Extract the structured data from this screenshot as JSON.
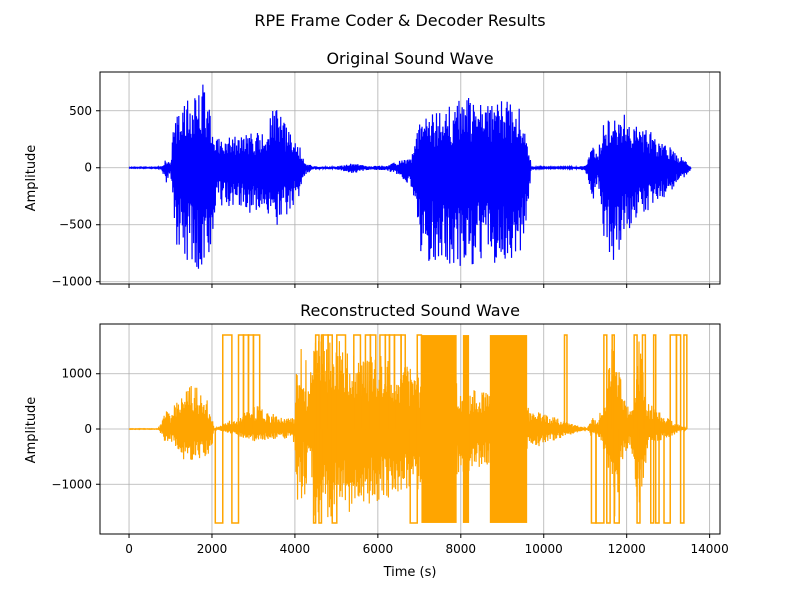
{
  "figure": {
    "suptitle": "RPE Frame Coder & Decoder Results"
  },
  "chart_data": [
    {
      "type": "line",
      "title": "Original Sound Wave",
      "xlabel": "",
      "ylabel": "Amplitude",
      "xlim": [
        -700,
        14250
      ],
      "ylim": [
        -1020,
        840
      ],
      "xticks": [
        0,
        2000,
        4000,
        6000,
        8000,
        10000,
        12000,
        14000
      ],
      "xtick_labels": [],
      "yticks": [
        -1000,
        -500,
        0,
        500
      ],
      "ytick_labels": [
        "−1000",
        "−500",
        "0",
        "500"
      ],
      "grid": true,
      "series": [
        {
          "color": "#0000ff",
          "envelope": {
            "x": [
              0,
              700,
              780,
              900,
              1000,
              1080,
              1150,
              1300,
              1500,
              1650,
              1750,
              1850,
              1950,
              2050,
              2150,
              2300,
              2600,
              3000,
              3300,
              3500,
              3900,
              4150,
              4250,
              4450,
              4600,
              4700,
              5000,
              5400,
              5800,
              6200,
              6500,
              6800,
              6900,
              7000,
              7200,
              7600,
              7900,
              8000,
              8100,
              8300,
              8600,
              8900,
              9200,
              9500,
              9600,
              9700,
              9800,
              10000,
              10500,
              10800,
              11000,
              11100,
              11200,
              11300,
              11450,
              11600,
              11700,
              11800,
              11900,
              12000,
              12300,
              12700,
              13000,
              13300,
              13500,
              13550
            ],
            "upper": [
              4,
              4,
              15,
              90,
              40,
              380,
              450,
              560,
              620,
              680,
              760,
              740,
              520,
              220,
              260,
              260,
              280,
              320,
              300,
              560,
              300,
              180,
              40,
              15,
              12,
              10,
              12,
              40,
              15,
              20,
              60,
              80,
              220,
              440,
              460,
              520,
              560,
              620,
              640,
              580,
              560,
              600,
              580,
              500,
              300,
              20,
              8,
              6,
              6,
              10,
              20,
              100,
              250,
              120,
              480,
              600,
              540,
              500,
              520,
              500,
              400,
              280,
              200,
              100,
              40,
              4
            ],
            "lower": [
              -4,
              -4,
              -20,
              -130,
              -60,
              -500,
              -700,
              -800,
              -850,
              -900,
              -940,
              -920,
              -860,
              -420,
              -330,
              -340,
              -380,
              -400,
              -400,
              -560,
              -380,
              -240,
              -60,
              -20,
              -15,
              -12,
              -15,
              -50,
              -20,
              -25,
              -60,
              -180,
              -300,
              -720,
              -820,
              -860,
              -940,
              -920,
              -900,
              -850,
              -820,
              -840,
              -800,
              -740,
              -380,
              -30,
              -10,
              -6,
              -6,
              -12,
              -30,
              -150,
              -320,
              -150,
              -600,
              -820,
              -880,
              -760,
              -600,
              -580,
              -440,
              -320,
              -240,
              -120,
              -50,
              -4
            ]
          }
        }
      ]
    },
    {
      "type": "line",
      "title": "Reconstructed Sound Wave",
      "xlabel": "Time (s)",
      "ylabel": "Amplitude",
      "xlim": [
        -700,
        14250
      ],
      "ylim": [
        -1900,
        1900
      ],
      "xticks": [
        0,
        2000,
        4000,
        6000,
        8000,
        10000,
        12000,
        14000
      ],
      "xtick_labels": [
        "0",
        "2000",
        "4000",
        "6000",
        "8000",
        "10000",
        "12000",
        "14000"
      ],
      "yticks": [
        -1000,
        0,
        1000
      ],
      "ytick_labels": [
        "−1000",
        "0",
        "1000"
      ],
      "grid": true,
      "series": [
        {
          "color": "#ffa500",
          "envelope": {
            "x": [
              0,
              700,
              800,
              900,
              1000,
              1100,
              1300,
              1500,
              1700,
              1800,
              1900,
              2000,
              2050,
              3150,
              3300,
              3600,
              3900,
              4000,
              4050,
              4100,
              4150,
              4200,
              4250,
              4300,
              4400,
              4500,
              4700,
              11050,
              11150,
              11300,
              11500,
              11700,
              11900,
              12100,
              12300,
              12500,
              12700,
              12900,
              13000,
              13450
            ],
            "upper": [
              5,
              5,
              150,
              380,
              250,
              500,
              680,
              900,
              750,
              620,
              500,
              300,
              0,
              450,
              300,
              260,
              200,
              300,
              1700,
              900,
              1700,
              700,
              1700,
              600,
              1200,
              1700,
              1700,
              0,
              250,
              150,
              800,
              1700,
              700,
              300,
              1700,
              500,
              350,
              250,
              200,
              0
            ],
            "lower": [
              -5,
              -5,
              -120,
              -300,
              -200,
              -350,
              -550,
              -650,
              -600,
              -550,
              -500,
              -400,
              0,
              -250,
              -200,
              -180,
              -170,
              -300,
              -1700,
              -800,
              -1700,
              -600,
              -1700,
              -500,
              -900,
              -1700,
              -1700,
              0,
              -150,
              -100,
              -500,
              -1700,
              -600,
              -250,
              -1700,
              -350,
              -250,
              -180,
              -150,
              0
            ]
          },
          "square_segments": [
            [
              2080,
              2260,
              -1
            ],
            [
              2260,
              2480,
              1
            ],
            [
              2480,
              2640,
              -1
            ],
            [
              2640,
              2760,
              1
            ],
            [
              2760,
              2880,
              1
            ],
            [
              2880,
              3000,
              1
            ],
            [
              3000,
              3150,
              1
            ],
            [
              4450,
              4500,
              -1
            ],
            [
              4500,
              4580,
              1
            ],
            [
              4580,
              4640,
              -1
            ],
            [
              4640,
              4680,
              1
            ],
            [
              4680,
              4800,
              1
            ],
            [
              4800,
              4900,
              1
            ],
            [
              4900,
              5010,
              -1
            ],
            [
              5010,
              5220,
              1
            ],
            [
              5220,
              5420,
              0
            ],
            [
              5420,
              5580,
              1
            ],
            [
              5580,
              5700,
              0
            ],
            [
              5700,
              5820,
              1
            ],
            [
              5820,
              5950,
              1
            ],
            [
              5950,
              6050,
              0
            ],
            [
              6050,
              6180,
              1
            ],
            [
              6180,
              6280,
              1
            ],
            [
              6280,
              6400,
              1
            ],
            [
              6400,
              6560,
              1
            ],
            [
              6560,
              6660,
              1
            ],
            [
              6660,
              6780,
              0
            ],
            [
              6780,
              6950,
              -1
            ],
            [
              6950,
              7050,
              1
            ],
            [
              10500,
              10560,
              1
            ],
            [
              10560,
              10800,
              0
            ],
            [
              10800,
              11050,
              0
            ],
            [
              11150,
              11260,
              -1
            ],
            [
              11260,
              11450,
              -1
            ],
            [
              11450,
              11520,
              1
            ],
            [
              11520,
              11600,
              -1
            ],
            [
              11650,
              11700,
              1
            ],
            [
              11700,
              11820,
              -1
            ],
            [
              12180,
              12250,
              1
            ],
            [
              12250,
              12320,
              -1
            ],
            [
              12380,
              12450,
              1
            ],
            [
              12450,
              12580,
              0
            ],
            [
              12580,
              12650,
              -1
            ],
            [
              12650,
              12700,
              1
            ],
            [
              12700,
              12780,
              -1
            ],
            [
              12780,
              12900,
              0
            ],
            [
              12900,
              13050,
              -1
            ],
            [
              13050,
              13200,
              1
            ],
            [
              13200,
              13300,
              1
            ],
            [
              13300,
              13380,
              -1
            ],
            [
              13380,
              13450,
              1
            ]
          ],
          "square_amplitude": 1700,
          "dense_blocks": [
            [
              7050,
              7900,
              1700,
              -1700
            ],
            [
              8050,
              8200,
              1700,
              -1700
            ],
            [
              8700,
              9600,
              1700,
              -1700
            ]
          ]
        }
      ]
    }
  ]
}
